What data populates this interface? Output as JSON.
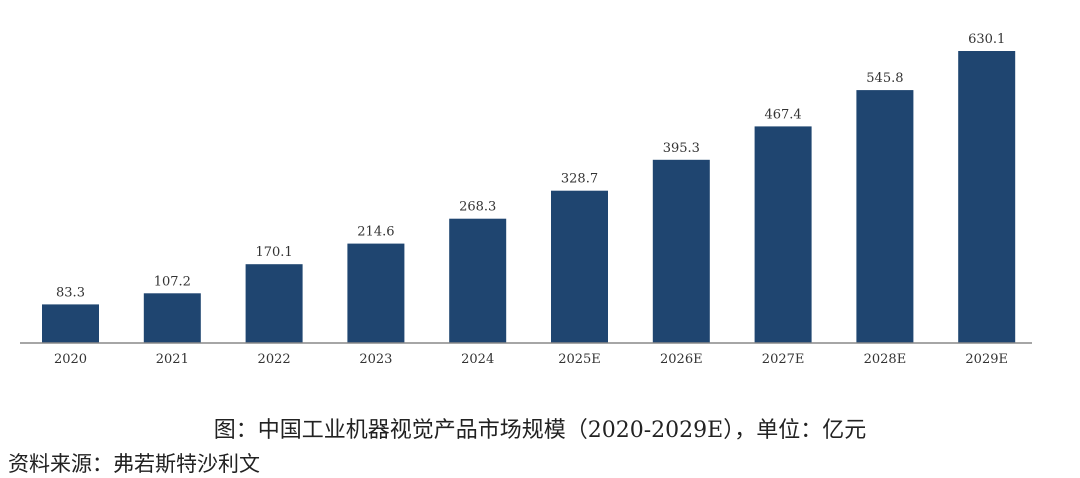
{
  "chart_data": {
    "type": "bar",
    "categories": [
      "2020",
      "2021",
      "2022",
      "2023",
      "2024",
      "2025E",
      "2026E",
      "2027E",
      "2028E",
      "2029E"
    ],
    "values": [
      83.3,
      107.2,
      170.1,
      214.6,
      268.3,
      328.7,
      395.3,
      467.4,
      545.8,
      630.1
    ],
    "value_labels": [
      "83.3",
      "107.2",
      "170.1",
      "214.6",
      "268.3",
      "328.7",
      "395.3",
      "467.4",
      "545.8",
      "630.1"
    ],
    "bar_color": "#1f4570",
    "ylim": [
      0,
      630.1
    ],
    "grid": false,
    "legend": "none"
  },
  "caption": "图：中国工业机器视觉产品市场规模（2020-2029E），单位：亿元",
  "source": "资料来源：弗若斯特沙利文"
}
